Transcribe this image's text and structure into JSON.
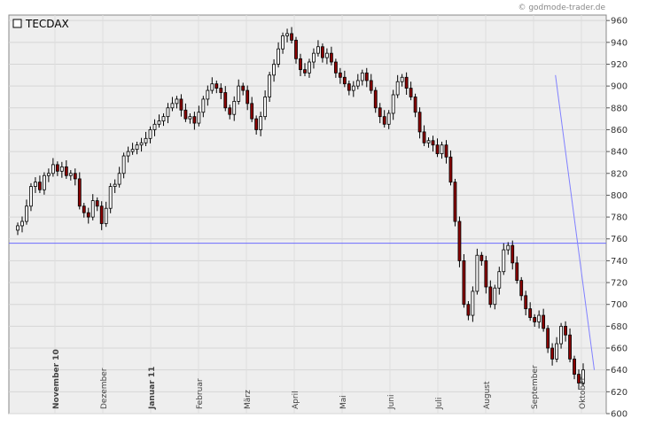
{
  "chart_data": {
    "type": "candlestick",
    "title": "TECDAX",
    "credit": "© godmode-trader.de",
    "ylim": [
      600,
      965
    ],
    "y_ticks": [
      600,
      620,
      640,
      660,
      680,
      700,
      720,
      740,
      760,
      780,
      800,
      820,
      840,
      860,
      880,
      900,
      920,
      940,
      960
    ],
    "x_months": [
      {
        "label": "November 10",
        "bold": true
      },
      {
        "label": "Dezember",
        "bold": false
      },
      {
        "label": "Januar 11",
        "bold": true
      },
      {
        "label": "Februar",
        "bold": false
      },
      {
        "label": "März",
        "bold": false
      },
      {
        "label": "April",
        "bold": false
      },
      {
        "label": "Mai",
        "bold": false
      },
      {
        "label": "Juni",
        "bold": false
      },
      {
        "label": "Juli",
        "bold": false
      },
      {
        "label": "August",
        "bold": false
      },
      {
        "label": "September",
        "bold": false
      },
      {
        "label": "Oktober",
        "bold": false
      }
    ],
    "horizontal_line": {
      "value": 756,
      "color": "#6b6bff"
    },
    "trend_line": {
      "points": [
        [
          0.915,
          910
        ],
        [
          0.98,
          640
        ]
      ],
      "color": "#8080ff"
    },
    "up_color": "#ffffff",
    "down_color": "#8b0000",
    "close_series": [
      772,
      776,
      790,
      808,
      812,
      805,
      818,
      820,
      828,
      822,
      826,
      818,
      820,
      815,
      790,
      784,
      780,
      795,
      790,
      774,
      788,
      808,
      810,
      820,
      836,
      840,
      842,
      846,
      848,
      852,
      860,
      865,
      868,
      872,
      880,
      884,
      888,
      878,
      870,
      872,
      866,
      876,
      888,
      896,
      902,
      898,
      894,
      880,
      874,
      886,
      900,
      896,
      884,
      870,
      860,
      872,
      890,
      910,
      920,
      934,
      946,
      948,
      942,
      925,
      915,
      912,
      922,
      930,
      936,
      926,
      930,
      922,
      912,
      908,
      902,
      896,
      900,
      905,
      912,
      905,
      896,
      880,
      872,
      865,
      875,
      892,
      904,
      908,
      898,
      890,
      876,
      858,
      848,
      850,
      846,
      838,
      846,
      835,
      812,
      776,
      740,
      700,
      690,
      712,
      745,
      740,
      716,
      700,
      715,
      730,
      750,
      754,
      738,
      722,
      708,
      696,
      688,
      684,
      690,
      678,
      660,
      650,
      664,
      680,
      672,
      650,
      636,
      628,
      640
    ]
  }
}
